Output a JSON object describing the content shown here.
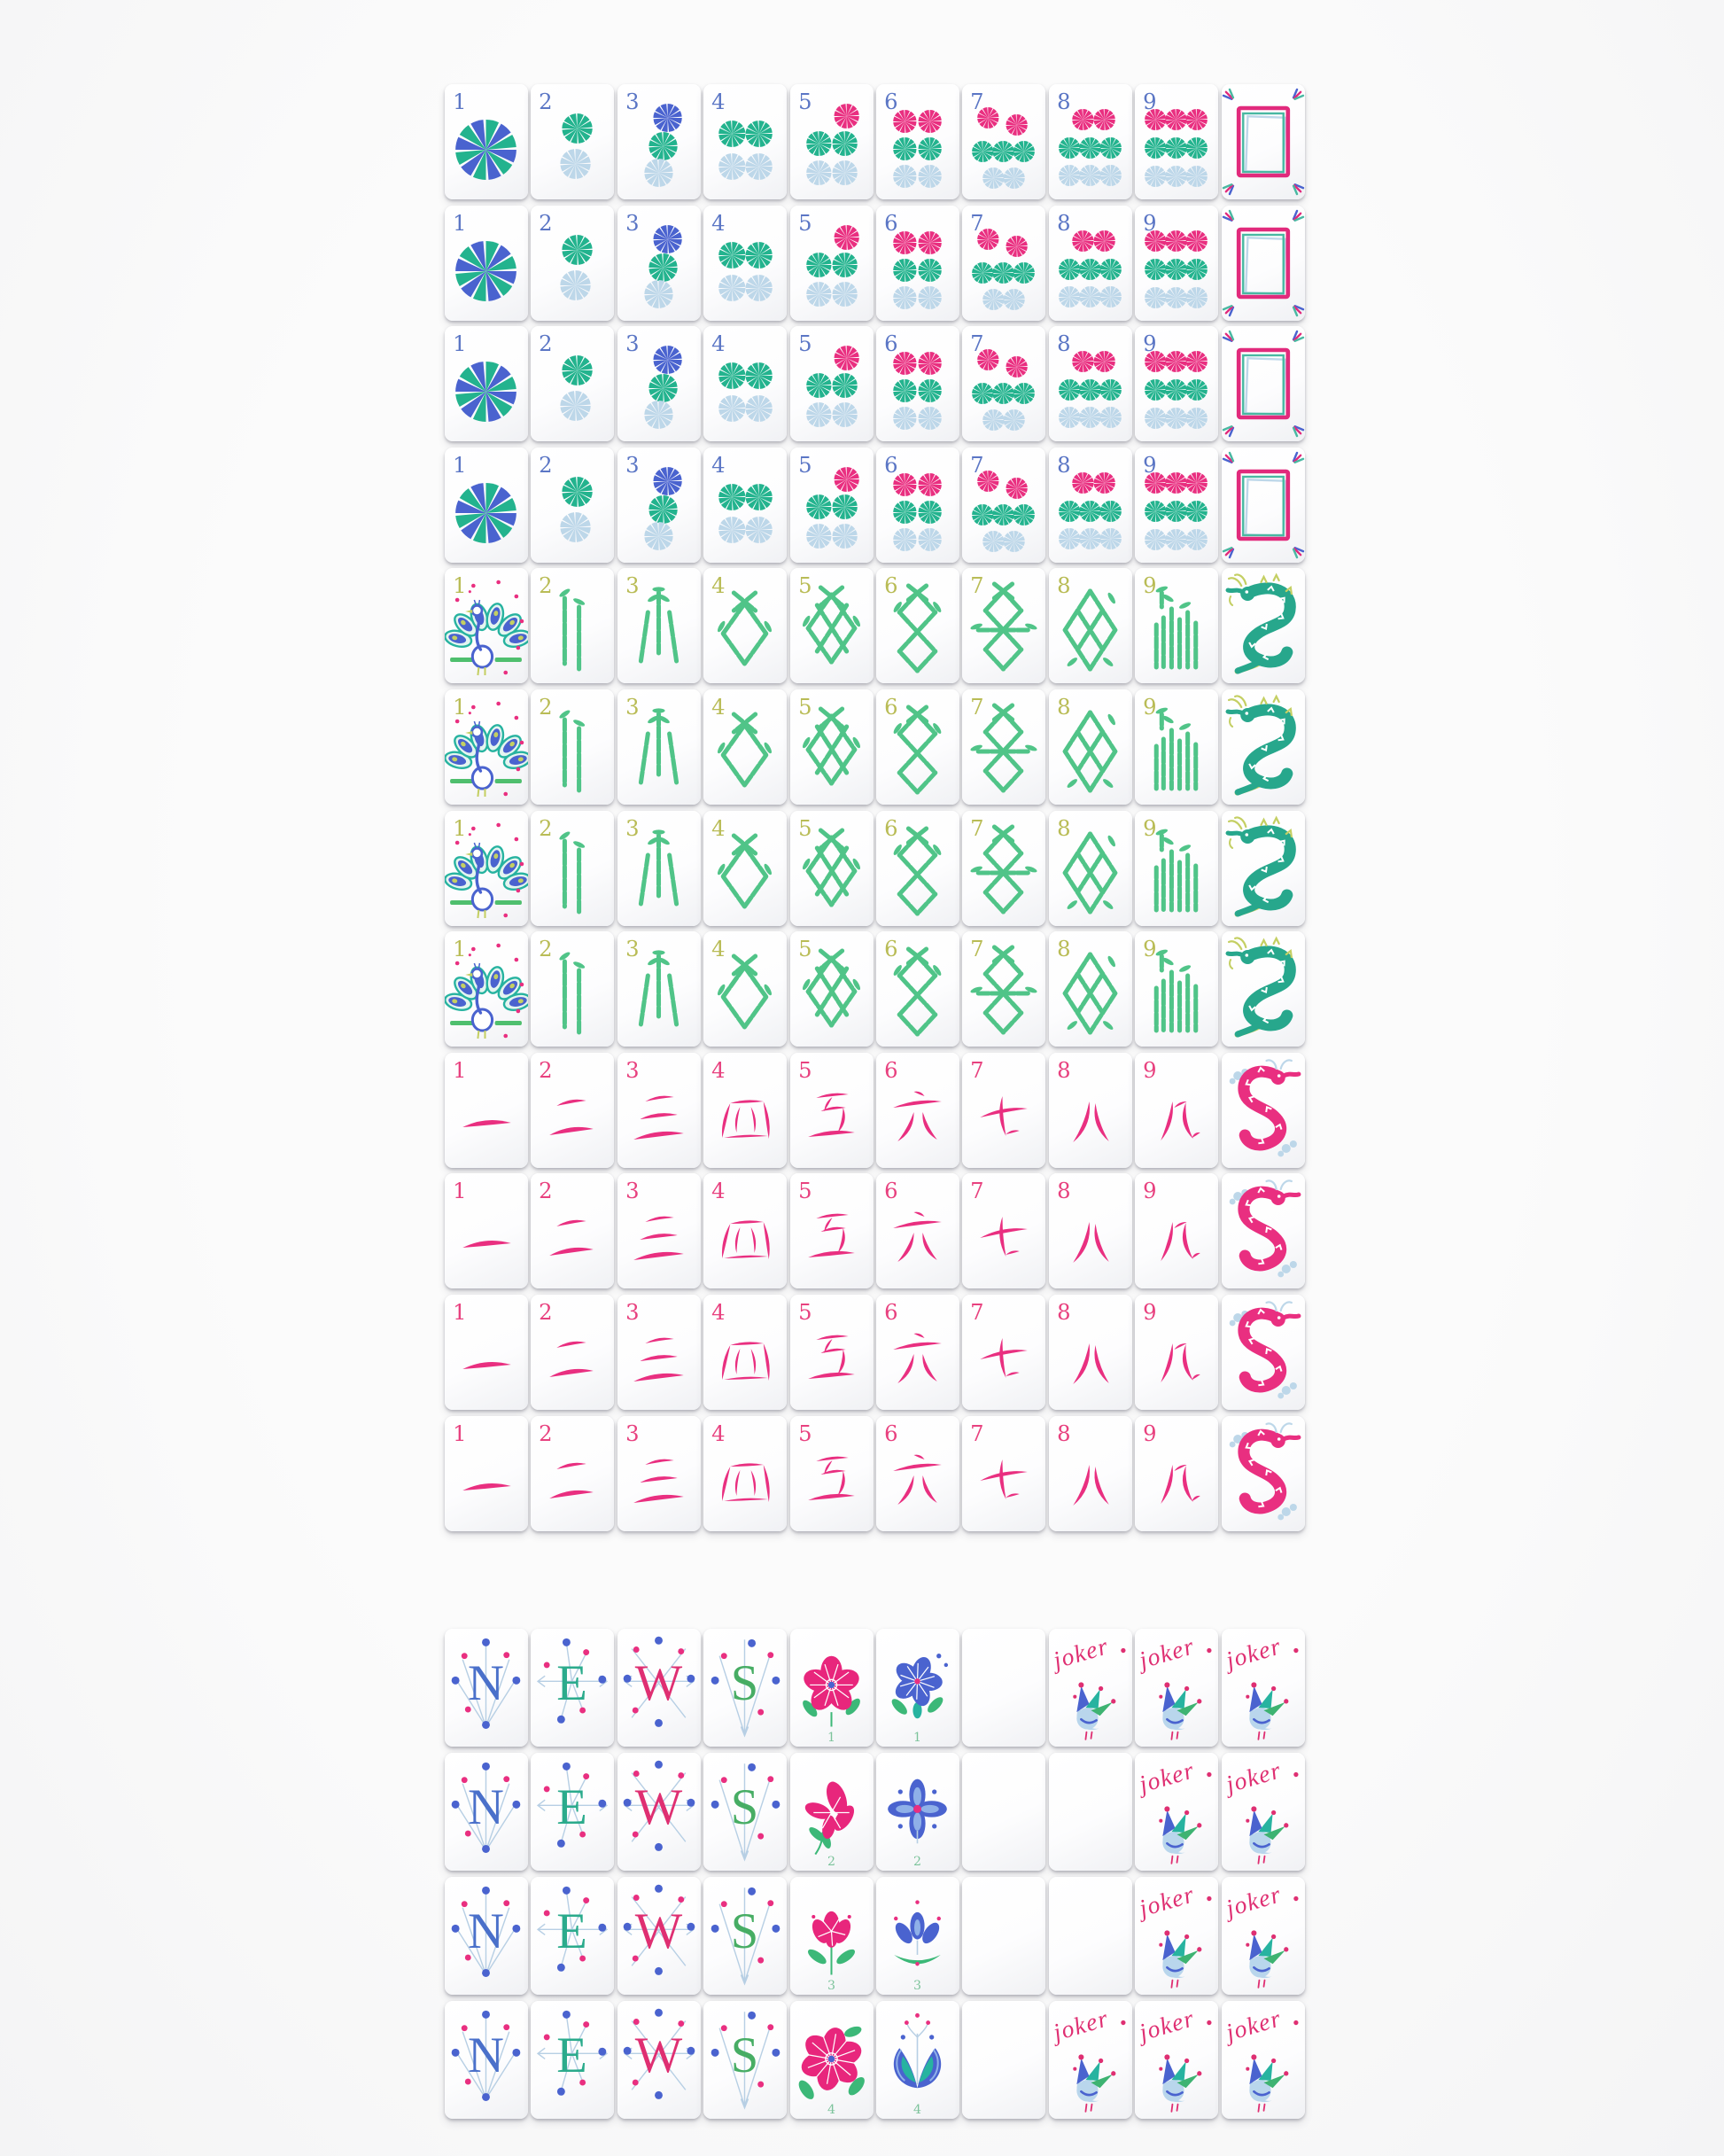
{
  "page": {
    "background": "#fafafa"
  },
  "palette": {
    "teal": "#23b38e",
    "royal": "#4a63cf",
    "pale": "#bdd7e9",
    "pink": "#e92f80",
    "dot_number": "#5b76c5",
    "bam_number": "#b9bc56",
    "crak_number": "#e8417f",
    "bamboo": "#50c488",
    "peacock_band": "#4fbf6e",
    "chartreuse": "#c4cf63",
    "dragon_teal": "#27a78c",
    "soap_pink": "#e12a7c",
    "soap_teal": "#49b8a2",
    "wind_n": "#4a70ca",
    "wind_e": "#2bab8c",
    "wind_w": "#df2f72",
    "wind_s": "#47ad64",
    "compass_line": "#b7cfe4",
    "flower_pink": "#e8267c",
    "flower_blue": "#4a63cf",
    "flower_blue_light": "#8fb0e8",
    "leaf_green": "#3cb878",
    "flower_number": "#7cc39b",
    "joker_pink": "#df2f72",
    "joker_teal": "#27b3a0",
    "joker_green": "#3eb372",
    "joker_pale": "#b9d6ec"
  },
  "suit_numbers": [
    1,
    2,
    3,
    4,
    5,
    6,
    7,
    8,
    9
  ],
  "top_block": {
    "suits": [
      {
        "id": "dots",
        "rows": 4,
        "end_tile": "soap"
      },
      {
        "id": "bams",
        "rows": 4,
        "end_tile": "green-dragon",
        "one_label_suffix": "."
      },
      {
        "id": "craks",
        "rows": 4,
        "end_tile": "pink-dragon"
      }
    ]
  },
  "bottom_block": {
    "joker_label": "joker",
    "rows": [
      [
        "wind:N",
        "wind:E",
        "wind:W",
        "wind:S",
        "flower-pink:1",
        "flower-blue:1",
        "blank",
        "joker",
        "joker",
        "joker"
      ],
      [
        "wind:N",
        "wind:E",
        "wind:W",
        "wind:S",
        "flower-pink:2",
        "flower-blue:2",
        "blank",
        "blank",
        "joker",
        "joker"
      ],
      [
        "wind:N",
        "wind:E",
        "wind:W",
        "wind:S",
        "flower-pink:3",
        "flower-blue:3",
        "blank",
        "blank",
        "joker",
        "joker"
      ],
      [
        "wind:N",
        "wind:E",
        "wind:W",
        "wind:S",
        "flower-pink:4",
        "flower-blue:4",
        "blank",
        "joker",
        "joker",
        "joker"
      ]
    ]
  }
}
